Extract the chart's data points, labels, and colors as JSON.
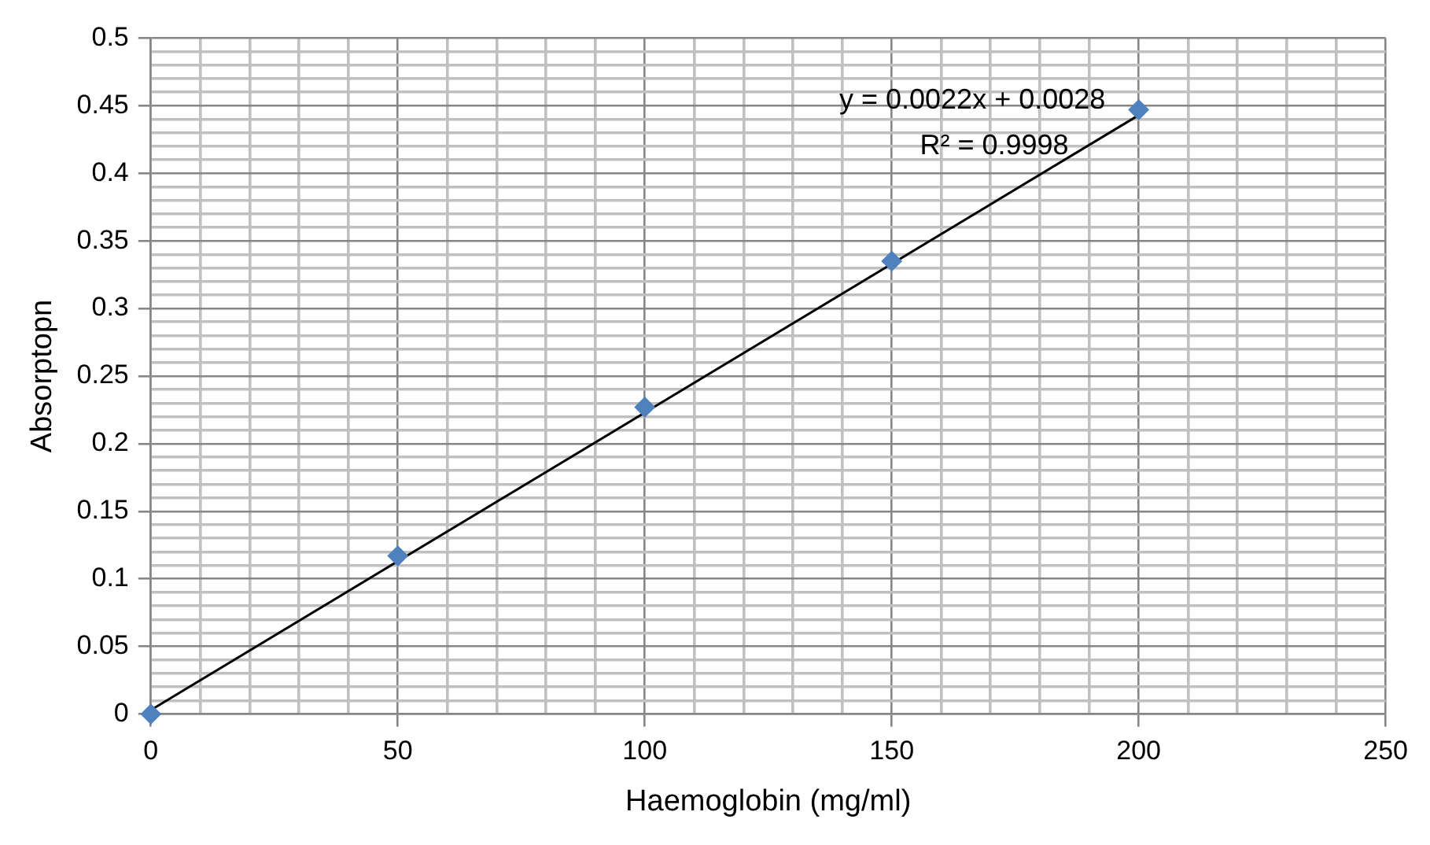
{
  "chart_data": {
    "type": "scatter",
    "xlabel": "Haemoglobin (mg/ml)",
    "ylabel": "Absorptopn",
    "x": [
      0,
      50,
      100,
      150,
      200
    ],
    "series": [
      {
        "color": "#4f81bd",
        "marker": "diamond",
        "values": [
          0,
          0.117,
          0.227,
          0.335,
          0.447
        ]
      },
      {
        "type": "line",
        "color": "#000000",
        "marker": "none",
        "x": [
          0,
          200
        ],
        "values": [
          0.003,
          0.443
        ]
      }
    ],
    "annotations": [
      "y = 0.0022x + 0.0028",
      "R² = 0.9998"
    ],
    "xlim": [
      0,
      250
    ],
    "xticks": [
      0,
      {
        "value": 10,
        "label": null
      },
      {
        "value": 20,
        "label": null
      },
      {
        "value": 30,
        "label": null
      },
      {
        "value": 40,
        "label": null
      },
      50,
      {
        "value": 60,
        "label": null
      },
      {
        "value": 70,
        "label": null
      },
      {
        "value": 80,
        "label": null
      },
      {
        "value": 90,
        "label": null
      },
      100,
      {
        "value": 110,
        "label": null
      },
      {
        "value": 120,
        "label": null
      },
      {
        "value": 130,
        "label": null
      },
      {
        "value": 140,
        "label": null
      },
      150,
      {
        "value": 160,
        "label": null
      },
      {
        "value": 170,
        "label": null
      },
      {
        "value": 180,
        "label": null
      },
      {
        "value": 190,
        "label": null
      },
      200,
      {
        "value": 210,
        "label": null
      },
      {
        "value": 220,
        "label": null
      },
      {
        "value": 230,
        "label": null
      },
      {
        "value": 240,
        "label": null
      },
      250
    ],
    "ylim": [
      0,
      0.5
    ],
    "yticks": [
      0,
      {
        "value": 0.01,
        "label": null
      },
      {
        "value": 0.02,
        "label": null
      },
      {
        "value": 0.03,
        "label": null
      },
      {
        "value": 0.04,
        "label": null
      },
      0.05,
      {
        "value": 0.06,
        "label": null
      },
      {
        "value": 0.07,
        "label": null
      },
      {
        "value": 0.08,
        "label": null
      },
      {
        "value": 0.09,
        "label": null
      },
      0.1,
      {
        "value": 0.11,
        "label": null
      },
      {
        "value": 0.12,
        "label": null
      },
      {
        "value": 0.13,
        "label": null
      },
      {
        "value": 0.14,
        "label": null
      },
      0.15,
      {
        "value": 0.16,
        "label": null
      },
      {
        "value": 0.17,
        "label": null
      },
      {
        "value": 0.18,
        "label": null
      },
      {
        "value": 0.19,
        "label": null
      },
      0.2,
      {
        "value": 0.21,
        "label": null
      },
      {
        "value": 0.22,
        "label": null
      },
      {
        "value": 0.23,
        "label": null
      },
      {
        "value": 0.24,
        "label": null
      },
      0.25,
      {
        "value": 0.26,
        "label": null
      },
      {
        "value": 0.27,
        "label": null
      },
      {
        "value": 0.28,
        "label": null
      },
      {
        "value": 0.29,
        "label": null
      },
      0.3,
      {
        "value": 0.31,
        "label": null
      },
      {
        "value": 0.32,
        "label": null
      },
      {
        "value": 0.33,
        "label": null
      },
      {
        "value": 0.34,
        "label": null
      },
      0.35,
      {
        "value": 0.36,
        "label": null
      },
      {
        "value": 0.37,
        "label": null
      },
      {
        "value": 0.38,
        "label": null
      },
      {
        "value": 0.39,
        "label": null
      },
      0.4,
      {
        "value": 0.41,
        "label": null
      },
      {
        "value": 0.42,
        "label": null
      },
      {
        "value": 0.43,
        "label": null
      },
      {
        "value": 0.44,
        "label": null
      },
      0.45,
      {
        "value": 0.46,
        "label": null
      },
      {
        "value": 0.47,
        "label": null
      },
      {
        "value": 0.48,
        "label": null
      },
      {
        "value": 0.49,
        "label": null
      },
      0.5
    ],
    "grid": true,
    "legend": false
  }
}
